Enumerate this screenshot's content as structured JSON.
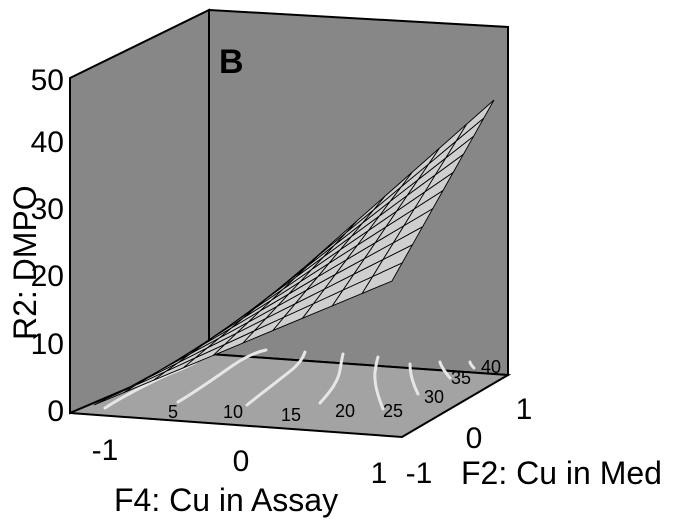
{
  "chart_data": {
    "type": "surface3d",
    "panel_label": "B",
    "z_axis": {
      "label": "R2: DMPO",
      "ticks": [
        "0",
        "10",
        "20",
        "30",
        "40",
        "50"
      ],
      "range": [
        0,
        50
      ]
    },
    "x_axis": {
      "label": "F4: Cu in Assay",
      "ticks": [
        "-1",
        "0",
        "1"
      ],
      "range": [
        -1,
        1
      ]
    },
    "y_axis": {
      "label": "F2: Cu in Med",
      "ticks": [
        "-1",
        "0",
        "1"
      ],
      "range": [
        -1,
        1
      ]
    },
    "surface": {
      "description_corners": [
        {
          "x": -1,
          "y": -1,
          "z": 0
        },
        {
          "x": 1,
          "y": -1,
          "z": 22
        },
        {
          "x": -1,
          "y": 1,
          "z": 6
        },
        {
          "x": 1,
          "y": 1,
          "z": 47
        }
      ]
    },
    "contour_levels": [
      "5",
      "10",
      "15",
      "20",
      "25",
      "30",
      "35",
      "40"
    ],
    "colors": {
      "wall": "#878787",
      "floor": "#a3a3a3",
      "surface": "#cfcfcf",
      "contour": "#e6e6e6"
    }
  }
}
